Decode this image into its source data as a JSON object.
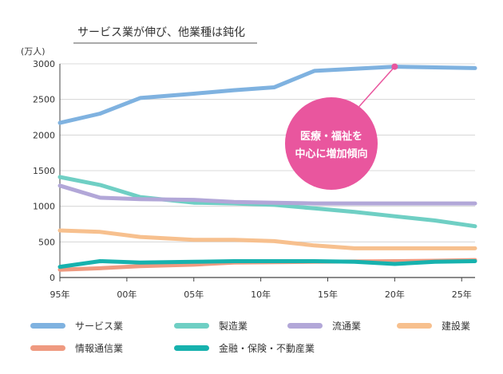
{
  "chart_data": {
    "type": "line",
    "title": "サービス業が伸び、他業種は鈍化",
    "ylabel": "(万人)",
    "ylim": [
      0,
      3000
    ],
    "yticks": [
      "0",
      "500",
      "1000",
      "1500",
      "2000",
      "2500",
      "3000"
    ],
    "xlim": [
      1995,
      2026
    ],
    "xticks": [
      {
        "value": 1995,
        "label": "95年"
      },
      {
        "value": 2000,
        "label": "00年"
      },
      {
        "value": 2005,
        "label": "05年"
      },
      {
        "value": 2010,
        "label": "10年"
      },
      {
        "value": 2015,
        "label": "15年"
      },
      {
        "value": 2020,
        "label": "20年"
      },
      {
        "value": 2025,
        "label": "25年"
      }
    ],
    "series": [
      {
        "name": "サービス業",
        "color": "#7fb2e0",
        "x": [
          1995,
          1998,
          2001,
          2005,
          2008,
          2011,
          2014,
          2017,
          2020,
          2023,
          2026
        ],
        "y": [
          2170,
          2300,
          2520,
          2580,
          2630,
          2670,
          2900,
          2930,
          2960,
          2950,
          2940
        ]
      },
      {
        "name": "製造業",
        "color": "#6fcfc4",
        "x": [
          1995,
          1998,
          2001,
          2005,
          2008,
          2011,
          2014,
          2017,
          2020,
          2023,
          2026
        ],
        "y": [
          1410,
          1300,
          1130,
          1050,
          1040,
          1020,
          970,
          920,
          860,
          800,
          720
        ]
      },
      {
        "name": "流通業",
        "color": "#b2a7d8",
        "x": [
          1995,
          1998,
          2001,
          2005,
          2008,
          2011,
          2014,
          2017,
          2020,
          2023,
          2026
        ],
        "y": [
          1290,
          1120,
          1100,
          1090,
          1060,
          1050,
          1040,
          1040,
          1040,
          1040,
          1040
        ]
      },
      {
        "name": "建設業",
        "color": "#f7c08e",
        "x": [
          1995,
          1998,
          2001,
          2005,
          2008,
          2011,
          2014,
          2017,
          2020,
          2023,
          2026
        ],
        "y": [
          660,
          640,
          570,
          530,
          530,
          510,
          450,
          410,
          410,
          410,
          410
        ]
      },
      {
        "name": "情報通信業",
        "color": "#ef9a80",
        "x": [
          1995,
          1998,
          2001,
          2005,
          2008,
          2011,
          2014,
          2017,
          2020,
          2023,
          2026
        ],
        "y": [
          110,
          130,
          160,
          180,
          210,
          215,
          220,
          225,
          230,
          235,
          245
        ]
      },
      {
        "name": "金融・保険・不動産業",
        "color": "#17b2ae",
        "x": [
          1995,
          1998,
          2001,
          2005,
          2008,
          2011,
          2014,
          2017,
          2020,
          2023,
          2026
        ],
        "y": [
          150,
          230,
          210,
          220,
          230,
          230,
          230,
          220,
          190,
          220,
          230
        ]
      }
    ],
    "annotation": {
      "lines": [
        "医療・福祉を",
        "中心に増加傾向"
      ],
      "x": 2020,
      "y": 2960,
      "color": "#e9569e"
    }
  }
}
